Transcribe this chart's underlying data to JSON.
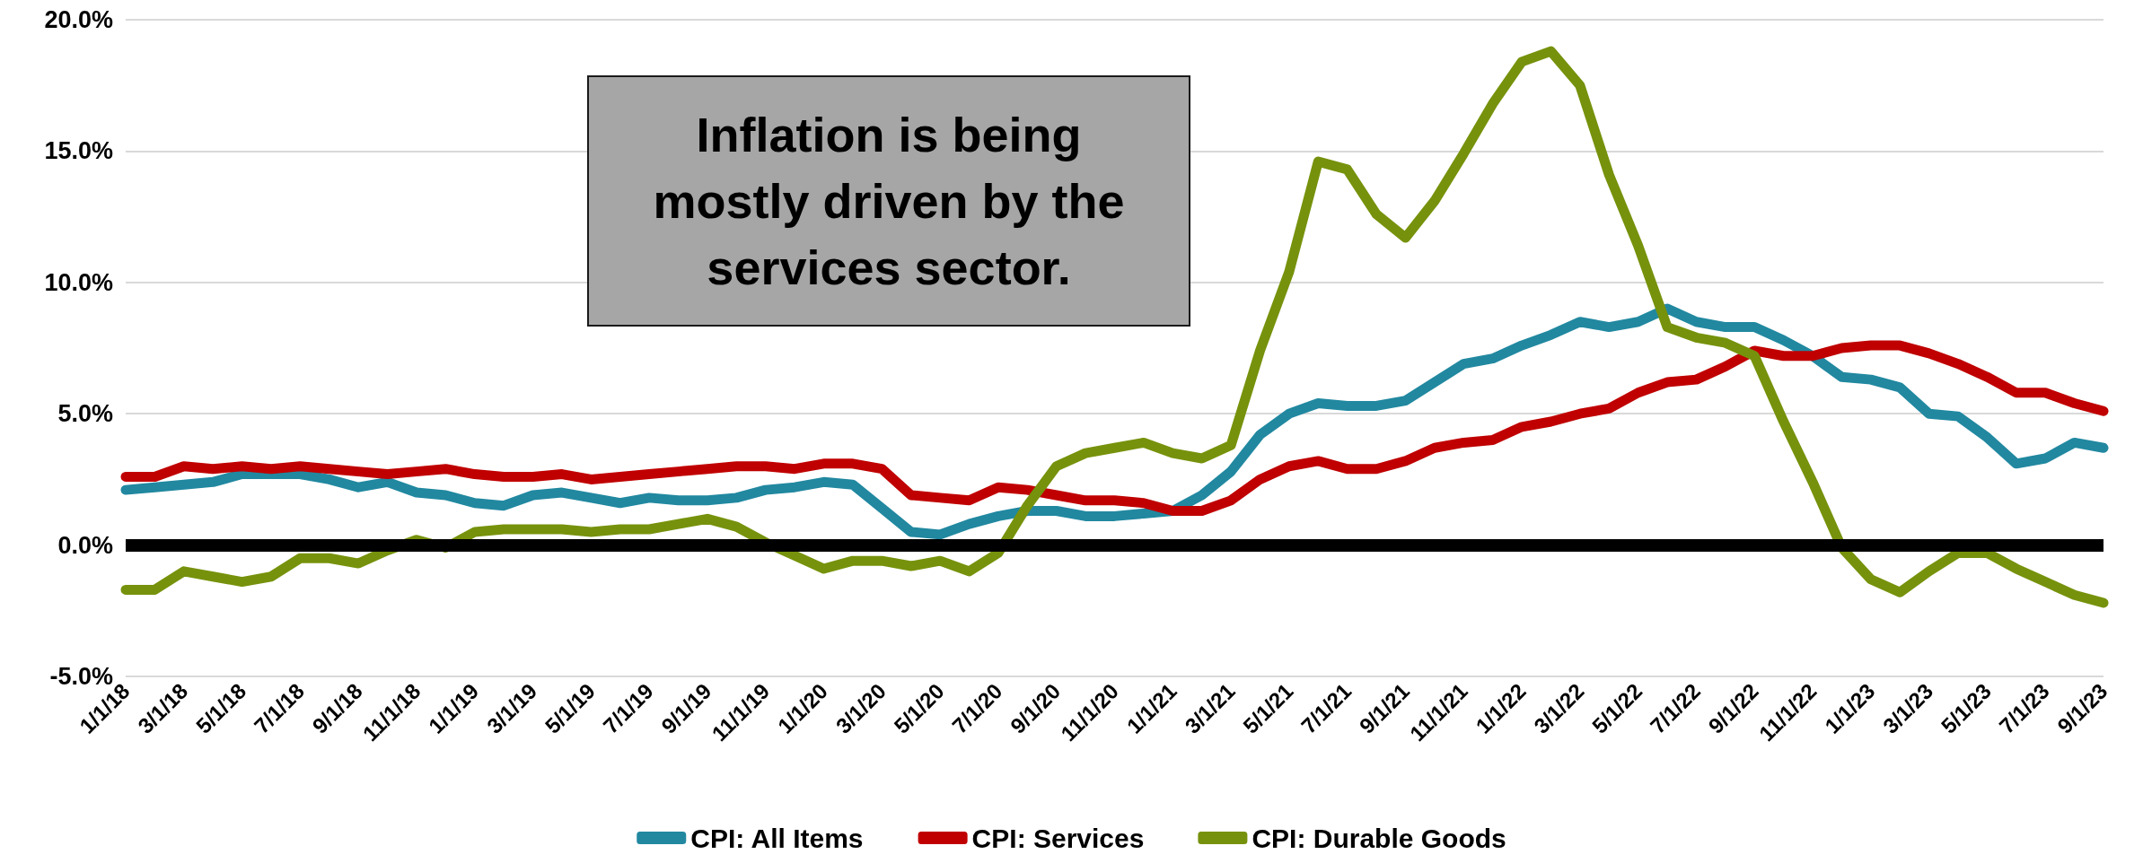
{
  "chart_data": {
    "type": "line",
    "categories": [
      "1/1/18",
      null,
      "3/1/18",
      null,
      "5/1/18",
      null,
      "7/1/18",
      null,
      "9/1/18",
      null,
      "11/1/18",
      null,
      "1/1/19",
      null,
      "3/1/19",
      null,
      "5/1/19",
      null,
      "7/1/19",
      null,
      "9/1/19",
      null,
      "11/1/19",
      null,
      "1/1/20",
      null,
      "3/1/20",
      null,
      "5/1/20",
      null,
      "7/1/20",
      null,
      "9/1/20",
      null,
      "11/1/20",
      null,
      "1/1/21",
      null,
      "3/1/21",
      null,
      "5/1/21",
      null,
      "7/1/21",
      null,
      "9/1/21",
      null,
      "11/1/21",
      null,
      "1/1/22",
      null,
      "3/1/22",
      null,
      "5/1/22",
      null,
      "7/1/22",
      null,
      "9/1/22",
      null,
      "11/1/22",
      null,
      "1/1/23",
      null,
      "3/1/23",
      null,
      "5/1/23",
      null,
      "7/1/23",
      null,
      "9/1/23"
    ],
    "series": [
      {
        "name": "CPI: All Items",
        "color": "#2188a0",
        "values": [
          2.1,
          2.2,
          2.3,
          2.4,
          2.7,
          2.7,
          2.7,
          2.5,
          2.2,
          2.4,
          2.0,
          1.9,
          1.6,
          1.5,
          1.9,
          2.0,
          1.8,
          1.6,
          1.8,
          1.7,
          1.7,
          1.8,
          2.1,
          2.2,
          2.4,
          2.3,
          1.4,
          0.5,
          0.4,
          0.8,
          1.1,
          1.3,
          1.3,
          1.1,
          1.1,
          1.2,
          1.3,
          1.9,
          2.8,
          4.2,
          5.0,
          5.4,
          5.3,
          5.3,
          5.5,
          6.2,
          6.9,
          7.1,
          7.6,
          8.0,
          8.5,
          8.3,
          8.5,
          9.0,
          8.5,
          8.3,
          8.3,
          7.8,
          7.2,
          6.4,
          6.3,
          6.0,
          5.0,
          4.9,
          4.1,
          3.1,
          3.3,
          3.9,
          3.7
        ]
      },
      {
        "name": "CPI: Services",
        "color": "#c00000",
        "values": [
          2.6,
          2.6,
          3.0,
          2.9,
          3.0,
          2.9,
          3.0,
          2.9,
          2.8,
          2.7,
          2.8,
          2.9,
          2.7,
          2.6,
          2.6,
          2.7,
          2.5,
          2.6,
          2.7,
          2.8,
          2.9,
          3.0,
          3.0,
          2.9,
          3.1,
          3.1,
          2.9,
          1.9,
          1.8,
          1.7,
          2.2,
          2.1,
          1.9,
          1.7,
          1.7,
          1.6,
          1.3,
          1.3,
          1.7,
          2.5,
          3.0,
          3.2,
          2.9,
          2.9,
          3.2,
          3.7,
          3.9,
          4.0,
          4.5,
          4.7,
          5.0,
          5.2,
          5.8,
          6.2,
          6.3,
          6.8,
          7.4,
          7.2,
          7.2,
          7.5,
          7.6,
          7.6,
          7.3,
          6.9,
          6.4,
          5.8,
          5.8,
          5.4,
          5.1
        ]
      },
      {
        "name": "CPI: Durable Goods",
        "color": "#76920c",
        "values": [
          -1.7,
          -1.7,
          -1.0,
          -1.2,
          -1.4,
          -1.2,
          -0.5,
          -0.5,
          -0.7,
          -0.2,
          0.2,
          -0.1,
          0.5,
          0.6,
          0.6,
          0.6,
          0.5,
          0.6,
          0.6,
          0.8,
          1.0,
          0.7,
          0.1,
          -0.4,
          -0.9,
          -0.6,
          -0.6,
          -0.8,
          -0.6,
          -1.0,
          -0.3,
          1.5,
          3.0,
          3.5,
          3.7,
          3.9,
          3.5,
          3.3,
          3.8,
          7.4,
          10.4,
          14.6,
          14.3,
          12.6,
          11.7,
          13.1,
          14.9,
          16.8,
          18.4,
          18.8,
          17.5,
          14.1,
          11.4,
          8.3,
          7.9,
          7.7,
          7.2,
          4.7,
          2.4,
          -0.1,
          -1.3,
          -1.8,
          -1.0,
          -0.3,
          -0.3,
          -0.9,
          -1.4,
          -1.9,
          -2.2
        ]
      }
    ],
    "ylim": [
      -5,
      20
    ],
    "yticks": [
      {
        "value": -5,
        "label": "-5.0%"
      },
      {
        "value": 0,
        "label": "0.0%"
      },
      {
        "value": 5,
        "label": "5.0%"
      },
      {
        "value": 10,
        "label": "10.0%"
      },
      {
        "value": 15,
        "label": "15.0%"
      },
      {
        "value": 20,
        "label": "20.0%"
      }
    ],
    "ref_lines": [
      {
        "axis": "y",
        "value": 0,
        "color": "#000000"
      }
    ],
    "annotations": [
      "Inflation is being\nmostly driven by the\nservices sector."
    ],
    "grid": "y",
    "legend": "bottom",
    "marker": "none",
    "line_style": "solid"
  }
}
